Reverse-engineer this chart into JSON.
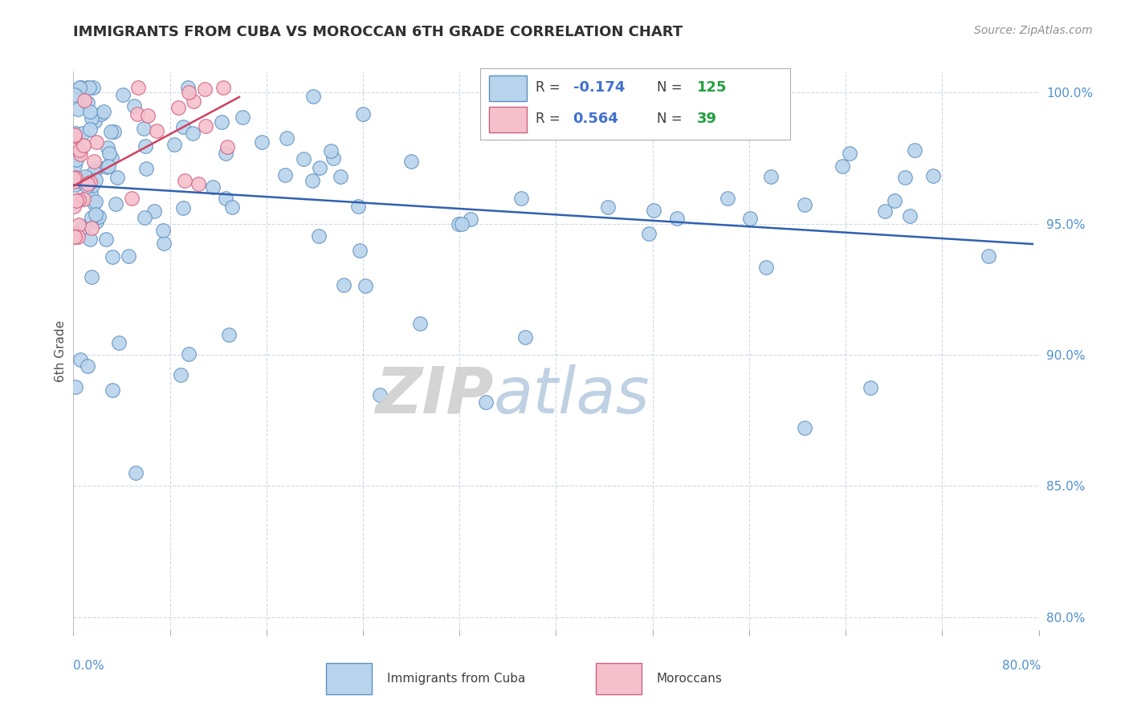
{
  "title": "IMMIGRANTS FROM CUBA VS MOROCCAN 6TH GRADE CORRELATION CHART",
  "source_text": "Source: ZipAtlas.com",
  "ylabel": "6th Grade",
  "right_yticks": [
    "100.0%",
    "95.0%",
    "90.0%",
    "85.0%",
    "80.0%"
  ],
  "right_ytick_vals": [
    1.0,
    0.95,
    0.9,
    0.85,
    0.8
  ],
  "xlim": [
    0.0,
    0.8
  ],
  "ylim": [
    0.795,
    1.008
  ],
  "legend_R_cuba": "-0.174",
  "legend_N_cuba": "125",
  "legend_R_moroc": "0.564",
  "legend_N_moroc": "39",
  "cuba_color": "#b8d4ec",
  "cuba_edge_color": "#6090c0",
  "moroc_color": "#f5c0cc",
  "moroc_edge_color": "#d06080",
  "cuba_trend_color": "#3060b0",
  "moroc_trend_color": "#d04060",
  "background_color": "#ffffff",
  "grid_color": "#d0d8e8",
  "title_color": "#303030",
  "axis_color": "#5090d0",
  "legend_R_color": "#4070d0",
  "legend_N_color": "#20a040",
  "watermark_zip_color": "#d0d0d0",
  "watermark_atlas_color": "#b8cce0"
}
